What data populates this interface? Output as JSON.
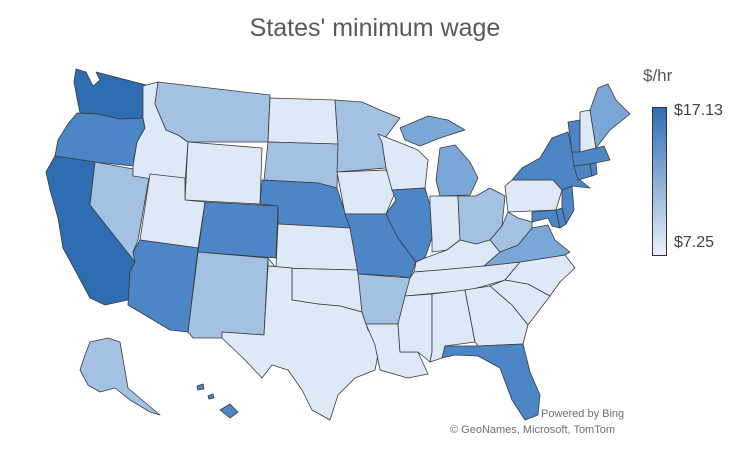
{
  "title": "States' minimum wage",
  "legend": {
    "unit": "$/hr",
    "max_label": "$17.13",
    "min_label": "$7.25",
    "max_color": "#2f6db3",
    "min_color": "#e8f0fa"
  },
  "credits": {
    "line1": "Powered by Bing",
    "line2": "© GeoNames, Microsoft, TomTom"
  },
  "map_data": {
    "type": "choropleth",
    "region": "United States",
    "shade_levels": [
      "lightest",
      "light",
      "medium",
      "dark",
      "darkest"
    ],
    "states": [
      {
        "name": "Washington",
        "shade": "darkest"
      },
      {
        "name": "Oregon",
        "shade": "dark"
      },
      {
        "name": "California",
        "shade": "darkest"
      },
      {
        "name": "Nevada",
        "shade": "light"
      },
      {
        "name": "Idaho",
        "shade": "lightest"
      },
      {
        "name": "Montana",
        "shade": "light"
      },
      {
        "name": "Wyoming",
        "shade": "lightest"
      },
      {
        "name": "Utah",
        "shade": "lightest"
      },
      {
        "name": "Arizona",
        "shade": "dark"
      },
      {
        "name": "Colorado",
        "shade": "dark"
      },
      {
        "name": "New Mexico",
        "shade": "light"
      },
      {
        "name": "North Dakota",
        "shade": "lightest"
      },
      {
        "name": "South Dakota",
        "shade": "light"
      },
      {
        "name": "Nebraska",
        "shade": "dark"
      },
      {
        "name": "Kansas",
        "shade": "lightest"
      },
      {
        "name": "Oklahoma",
        "shade": "lightest"
      },
      {
        "name": "Texas",
        "shade": "lightest"
      },
      {
        "name": "Minnesota",
        "shade": "light"
      },
      {
        "name": "Iowa",
        "shade": "lightest"
      },
      {
        "name": "Missouri",
        "shade": "dark"
      },
      {
        "name": "Arkansas",
        "shade": "light"
      },
      {
        "name": "Louisiana",
        "shade": "lightest"
      },
      {
        "name": "Wisconsin",
        "shade": "lightest"
      },
      {
        "name": "Illinois",
        "shade": "dark"
      },
      {
        "name": "Michigan",
        "shade": "medium"
      },
      {
        "name": "Indiana",
        "shade": "lightest"
      },
      {
        "name": "Ohio",
        "shade": "light"
      },
      {
        "name": "Kentucky",
        "shade": "lightest"
      },
      {
        "name": "Tennessee",
        "shade": "lightest"
      },
      {
        "name": "Mississippi",
        "shade": "lightest"
      },
      {
        "name": "Alabama",
        "shade": "lightest"
      },
      {
        "name": "Georgia",
        "shade": "lightest"
      },
      {
        "name": "Florida",
        "shade": "dark"
      },
      {
        "name": "South Carolina",
        "shade": "lightest"
      },
      {
        "name": "North Carolina",
        "shade": "lightest"
      },
      {
        "name": "Virginia",
        "shade": "medium"
      },
      {
        "name": "West Virginia",
        "shade": "light"
      },
      {
        "name": "Pennsylvania",
        "shade": "lightest"
      },
      {
        "name": "New York",
        "shade": "dark"
      },
      {
        "name": "New Jersey",
        "shade": "dark"
      },
      {
        "name": "Delaware",
        "shade": "dark"
      },
      {
        "name": "Maryland",
        "shade": "dark"
      },
      {
        "name": "Connecticut",
        "shade": "dark"
      },
      {
        "name": "Rhode Island",
        "shade": "dark"
      },
      {
        "name": "Massachusetts",
        "shade": "dark"
      },
      {
        "name": "Vermont",
        "shade": "dark"
      },
      {
        "name": "New Hampshire",
        "shade": "lightest"
      },
      {
        "name": "Maine",
        "shade": "medium"
      },
      {
        "name": "Alaska",
        "shade": "light"
      },
      {
        "name": "Hawaii",
        "shade": "dark"
      }
    ]
  }
}
